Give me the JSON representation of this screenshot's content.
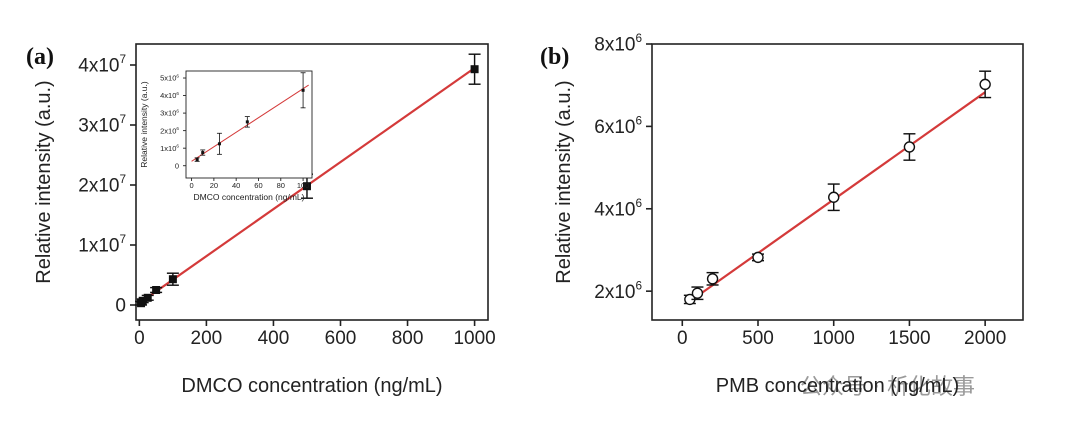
{
  "panels": {
    "a": {
      "label": "(a)"
    },
    "b": {
      "label": "(b)"
    }
  },
  "watermark": "公众号 · 析化故事",
  "colors": {
    "fit_line": "#d43a3a",
    "marker": "#111111",
    "axis": "#222222"
  },
  "chart_data": [
    {
      "id": "a-main",
      "type": "scatter",
      "xlabel": "DMCO concentration (ng/mL)",
      "ylabel": "Relative intensity (a.u.)",
      "xlim": [
        -10,
        1040
      ],
      "ylim": [
        -2500000,
        43500000
      ],
      "xticks": [
        0,
        200,
        400,
        600,
        800,
        1000
      ],
      "yticks": [
        {
          "value": 0,
          "label": "0"
        },
        {
          "value": 10000000,
          "label": "1x10",
          "exp": "7"
        },
        {
          "value": 20000000,
          "label": "2x10",
          "exp": "7"
        },
        {
          "value": 30000000,
          "label": "3x10",
          "exp": "7"
        },
        {
          "value": 40000000,
          "label": "4x10",
          "exp": "7"
        }
      ],
      "marker": "filled-square",
      "points": [
        {
          "x": 5,
          "y": 300000,
          "err": 300000
        },
        {
          "x": 10,
          "y": 700000,
          "err": 300000
        },
        {
          "x": 25,
          "y": 1200000,
          "err": 400000
        },
        {
          "x": 50,
          "y": 2500000,
          "err": 400000
        },
        {
          "x": 100,
          "y": 4300000,
          "err": 1000000
        },
        {
          "x": 500,
          "y": 19800000,
          "err": 2000000
        },
        {
          "x": 1000,
          "y": 39300000,
          "err": 2500000
        }
      ],
      "fit": {
        "x": [
          0,
          1000
        ],
        "y": [
          300000,
          39500000
        ]
      }
    },
    {
      "id": "a-inset",
      "type": "scatter",
      "xlabel": "DMCO concentration (ng/mL)",
      "ylabel": "Relative intensity (a.u.)",
      "xlim": [
        -5,
        108
      ],
      "ylim": [
        -700000,
        5400000
      ],
      "xticks": [
        0,
        20,
        40,
        60,
        80,
        100
      ],
      "yticks": [
        {
          "value": 0,
          "label": "0"
        },
        {
          "value": 1000000,
          "label": "1x10",
          "exp": "6"
        },
        {
          "value": 2000000,
          "label": "2x10",
          "exp": "6"
        },
        {
          "value": 3000000,
          "label": "3x10",
          "exp": "6"
        },
        {
          "value": 4000000,
          "label": "4x10",
          "exp": "6"
        },
        {
          "value": 5000000,
          "label": "5x10",
          "exp": "6"
        }
      ],
      "marker": "filled-square",
      "points": [
        {
          "x": 5,
          "y": 350000,
          "err": 100000
        },
        {
          "x": 10,
          "y": 750000,
          "err": 150000
        },
        {
          "x": 25,
          "y": 1250000,
          "err": 600000
        },
        {
          "x": 50,
          "y": 2500000,
          "err": 300000
        },
        {
          "x": 100,
          "y": 4300000,
          "err": 1000000
        }
      ],
      "fit": {
        "x": [
          0,
          105
        ],
        "y": [
          250000,
          4600000
        ]
      }
    },
    {
      "id": "b-main",
      "type": "scatter",
      "xlabel": "PMB concentration (ng/mL)",
      "ylabel": "Relative intensity (a.u.)",
      "xlim": [
        -200,
        2250
      ],
      "ylim": [
        1300000,
        8000000
      ],
      "xticks": [
        0,
        500,
        1000,
        1500,
        2000
      ],
      "yticks": [
        {
          "value": 2000000,
          "label": "2x10",
          "exp": "6"
        },
        {
          "value": 4000000,
          "label": "4x10",
          "exp": "6"
        },
        {
          "value": 6000000,
          "label": "6x10",
          "exp": "6"
        },
        {
          "value": 8000000,
          "label": "8x10",
          "exp": "6"
        }
      ],
      "marker": "open-circle",
      "points": [
        {
          "x": 50,
          "y": 1800000,
          "err": 100000
        },
        {
          "x": 100,
          "y": 1950000,
          "err": 150000
        },
        {
          "x": 200,
          "y": 2300000,
          "err": 150000
        },
        {
          "x": 500,
          "y": 2820000,
          "err": 80000
        },
        {
          "x": 1000,
          "y": 4280000,
          "err": 320000
        },
        {
          "x": 1500,
          "y": 5500000,
          "err": 320000
        },
        {
          "x": 2000,
          "y": 7020000,
          "err": 320000
        }
      ],
      "fit": {
        "x": [
          30,
          2000
        ],
        "y": [
          1700000,
          6830000
        ]
      }
    }
  ]
}
